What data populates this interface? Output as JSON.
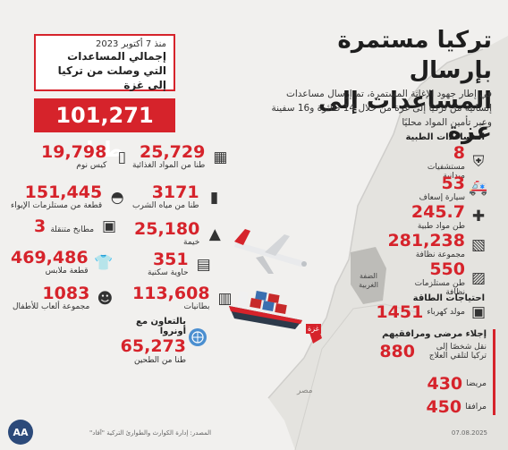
{
  "colors": {
    "accent": "#d6232b",
    "background": "#f1f0ee",
    "land": "#e2e1dd",
    "sea": "#f5f4f2"
  },
  "title": "تركيا مستمرة بإرسال المساعدات إلى غزة",
  "intro": "في إطار جهود الإغاثة المستمرة، تم إرسال مساعدات إنسانية من تركيا إلى غزة من خلال 14 طائرة و16 سفينة وعبر تأمين المواد محليًا",
  "summary": {
    "since": "منذ 7 أكتوبر 2023",
    "heading": "إجمالي المساعدات التي وصلت من تركيا إلى غزة",
    "total": "101,271 طنا"
  },
  "stats": [
    {
      "value": "25,729",
      "label": "طنا من المواد الغذائية",
      "icon": "food-icon"
    },
    {
      "value": "19,798",
      "label": "كيس نوم",
      "icon": "sleeping-bag-icon"
    },
    {
      "value": "3171",
      "label": "طنا من مياه الشرب",
      "icon": "water-bottle-icon"
    },
    {
      "value": "151,445",
      "label": "قطعة من مستلزمات الإيواء",
      "icon": "shelter-supplies-icon"
    },
    {
      "value": "25,180",
      "label": "خيمة",
      "icon": "tent-icon"
    },
    {
      "value": "3",
      "label": "مطابخ متنقلة",
      "icon": "mobile-kitchen-icon"
    },
    {
      "value": "351",
      "label": "حاوية سكنية",
      "icon": "container-icon"
    },
    {
      "value": "469,486",
      "label": "قطعة ملابس",
      "icon": "clothes-icon"
    },
    {
      "value": "113,608",
      "label": "بطانيات",
      "icon": "blanket-icon"
    },
    {
      "value": "1083",
      "label": "مجموعة ألعاب للأطفال",
      "icon": "toys-icon"
    }
  ],
  "unrwa": {
    "heading": "بالتعاون مع أونروا",
    "value": "65,273",
    "label": "طنا من الطحين",
    "icon": "unrwa-icon"
  },
  "medical": {
    "heading": "المساعدات الطبية",
    "items": [
      {
        "value": "8",
        "label": "مستشفيات ميدانية",
        "icon": "hospital-icon"
      },
      {
        "value": "53",
        "label": "سيارة إسعاف",
        "icon": "ambulance-icon"
      },
      {
        "value": "245.7",
        "label": "طن مواد طبية",
        "icon": "medical-supplies-icon"
      },
      {
        "value": "281,238",
        "label": "مجموعة نظافة",
        "icon": "hygiene-kit-icon"
      },
      {
        "value": "550",
        "label": "طن مستلزمات نظافة",
        "icon": "cleaning-supplies-icon"
      }
    ]
  },
  "energy": {
    "heading": "احتياجات الطاقة",
    "value": "1451",
    "label": "مولد كهرباء",
    "icon": "generator-icon"
  },
  "evac": {
    "heading": "إجلاء مرضى ومرافقيهم",
    "items": [
      {
        "value": "880",
        "label": "نقل شخصًا إلى تركيا لتلقي العلاج"
      },
      {
        "value": "430",
        "label": "مريضا"
      },
      {
        "value": "450",
        "label": "مرافقا"
      }
    ]
  },
  "map_labels": {
    "west_bank": "الضفة الغربية",
    "gaza": "غزة",
    "egypt": "مصر"
  },
  "footer": {
    "source": "المصدر: إدارة الكوارث والطوارئ التركية \"آفاد\"",
    "date": "07.08.2025"
  },
  "logo": "AA"
}
